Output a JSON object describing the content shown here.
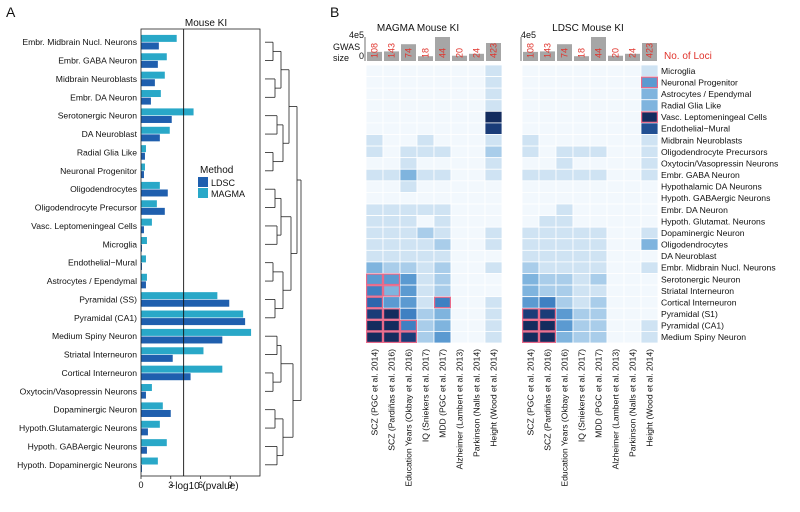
{
  "panel_a": {
    "label": "A",
    "title": "Mouse KI",
    "legend_title": "Method",
    "legend_entries": [
      "LDSC",
      "MAGMA"
    ],
    "colors": {
      "LDSC": "#1f5fae",
      "MAGMA": "#29a8c8"
    },
    "xlabel": "−log10 (pvalue)",
    "xticks": [
      "0",
      "3",
      "6",
      "9"
    ]
  },
  "panel_b": {
    "label": "B",
    "magma_title": "MAGMA Mouse KI",
    "ldsc_title": "LDSC Mouse KI",
    "gwas_label_top": "GWAS",
    "gwas_label_bottom": "size",
    "gwas_axis_top": "4e5",
    "gwas_axis_bottom": "0",
    "loci_label": "No. of Loci",
    "loci_color": "#e0332b",
    "bar_color": "#a6a6a6",
    "highlight_color": "#e86a8a"
  },
  "chart_data": [
    {
      "type": "bar",
      "title": "Mouse KI",
      "xlabel": "−log10 (pvalue)",
      "xlim": [
        0,
        12
      ],
      "threshold": 4.3,
      "categories": [
        "Embr. Midbrain Nucl. Neurons",
        "Embr. GABA Neuron",
        "Midbrain Neuroblasts",
        "Embr. DA Neuron",
        "Serotonergic Neuron",
        "DA Neuroblast",
        "Radial Glia Like",
        "Neuronal Progenitor",
        "Oligodendrocytes",
        "Oligodendrocyte Precursor",
        "Vasc. Leptomeningeal Cells",
        "Microglia",
        "Endothelial−Mural",
        "Astrocytes / Ependymal",
        "Pyramidal (SS)",
        "Pyramidal (CA1)",
        "Medium Spiny Neuron",
        "Striatal Interneuron",
        "Cortical Interneuron",
        "Oxytocin/Vasopressin Neurons",
        "Dopaminergic Neuron",
        "Hypoth.Glutamatergic Neurons",
        "Hypoth. GABAergic Neurons",
        "Hypoth. Dopaminergic Neurons"
      ],
      "series": [
        {
          "name": "MAGMA",
          "values": [
            3.6,
            2.6,
            2.4,
            2.0,
            5.3,
            2.9,
            0.5,
            0.4,
            1.9,
            1.6,
            1.1,
            0.6,
            0.5,
            0.6,
            7.7,
            10.3,
            11.1,
            6.3,
            8.2,
            1.1,
            2.2,
            1.9,
            2.6,
            1.7
          ]
        },
        {
          "name": "LDSC",
          "values": [
            1.8,
            1.7,
            1.4,
            1.0,
            3.1,
            1.9,
            0.4,
            0.3,
            2.7,
            2.4,
            0.3,
            0.1,
            0.1,
            0.5,
            8.9,
            10.5,
            8.2,
            3.2,
            5.0,
            0.5,
            3.0,
            0.7,
            0.6,
            0.1
          ]
        }
      ]
    },
    {
      "type": "heatmap",
      "rows": [
        "Microglia",
        "Neuronal Progenitor",
        "Astrocytes / Ependymal",
        "Radial Glia Like",
        "Vasc. Leptomeningeal Cells",
        "Endothelial−Mural",
        "Midbrain Neuroblasts",
        "Oligodendrocyte Precursors",
        "Oxytocin/Vasopressin Neurons",
        "Embr. GABA Neuron",
        "Hypothalamic DA Neurons",
        "Hypoth. GABAergic Neurons",
        "Embr. DA Neuron",
        "Hypoth. Glutamat. Neurons",
        "Dopaminergic Neuron",
        "Oligodendrocytes",
        "DA Neuroblast",
        "Embr. Midbrain Nucl. Neurons",
        "Serotonergic Neuron",
        "Striatal Interneuron",
        "Cortical Interneuron",
        "Pyramidal (S1)",
        "Pyramidal (CA1)",
        "Medium Spiny Neuron"
      ],
      "columns": [
        "SCZ (PGC et al. 2014)",
        "SCZ (Pardiñas et al. 2016)",
        "Education Years (Okbay et al. 2016)",
        "IQ (Sniekers et al. 2017)",
        "MDD (PGC et al. 2017)",
        "Alzheimer (Lambert et al. 2013)",
        "Parkinson (Nalls et al. 2014)",
        "Height (Wood et al. 2014)"
      ],
      "loci": [
        "108",
        "143",
        "74",
        "18",
        "44",
        "20",
        "24",
        "423"
      ],
      "gwas_size": [
        0.38,
        0.4,
        0.7,
        0.2,
        1.0,
        0.22,
        0.3,
        0.75
      ],
      "magma": [
        [
          0,
          0,
          0,
          0,
          0,
          0,
          0,
          1
        ],
        [
          0,
          0,
          0,
          0,
          0,
          0,
          0,
          1
        ],
        [
          0,
          0,
          0,
          0,
          0,
          0,
          0,
          1
        ],
        [
          0,
          0,
          0,
          0,
          0,
          0,
          0,
          1
        ],
        [
          0,
          0,
          0,
          0,
          0,
          0,
          0,
          9
        ],
        [
          0,
          0,
          0,
          0,
          0,
          0,
          0,
          8
        ],
        [
          1,
          0,
          0,
          1,
          0,
          0,
          0,
          1
        ],
        [
          1,
          0,
          1,
          1,
          1,
          0,
          0,
          2
        ],
        [
          0,
          0,
          1,
          0,
          0,
          0,
          0,
          1
        ],
        [
          1,
          1,
          3,
          1,
          1,
          0,
          0,
          1
        ],
        [
          0,
          0,
          1,
          0,
          0,
          0,
          0,
          0
        ],
        [
          0,
          0,
          0,
          0,
          0,
          0,
          0,
          0
        ],
        [
          1,
          1,
          1,
          1,
          1,
          0,
          0,
          0
        ],
        [
          1,
          1,
          1,
          0,
          1,
          0,
          0,
          0
        ],
        [
          1,
          1,
          1,
          2,
          1,
          0,
          0,
          1
        ],
        [
          1,
          1,
          1,
          1,
          2,
          0,
          0,
          1
        ],
        [
          1,
          1,
          1,
          1,
          1,
          0,
          0,
          0
        ],
        [
          3,
          2,
          2,
          1,
          2,
          0,
          0,
          1
        ],
        [
          4,
          4,
          4,
          1,
          2,
          0,
          0,
          0
        ],
        [
          5,
          3,
          4,
          1,
          2,
          0,
          0,
          0
        ],
        [
          6,
          4,
          4,
          1,
          5,
          0,
          0,
          1
        ],
        [
          8,
          9,
          5,
          2,
          3,
          0,
          0,
          1
        ],
        [
          9,
          9,
          5,
          2,
          3,
          0,
          0,
          1
        ],
        [
          9,
          9,
          8,
          2,
          4,
          0,
          0,
          1
        ]
      ],
      "ldsc": [
        [
          0,
          0,
          0,
          0,
          0,
          0,
          0,
          1
        ],
        [
          0,
          0,
          0,
          0,
          0,
          0,
          0,
          4
        ],
        [
          0,
          0,
          0,
          0,
          0,
          0,
          0,
          3
        ],
        [
          0,
          0,
          0,
          0,
          0,
          0,
          0,
          3
        ],
        [
          0,
          0,
          0,
          0,
          0,
          0,
          0,
          9
        ],
        [
          0,
          0,
          0,
          0,
          0,
          0,
          0,
          7
        ],
        [
          1,
          0,
          0,
          0,
          0,
          0,
          0,
          1
        ],
        [
          1,
          0,
          1,
          1,
          1,
          0,
          0,
          1
        ],
        [
          0,
          0,
          1,
          0,
          0,
          0,
          0,
          1
        ],
        [
          1,
          1,
          1,
          1,
          1,
          0,
          0,
          1
        ],
        [
          0,
          0,
          0,
          0,
          0,
          0,
          0,
          0
        ],
        [
          0,
          0,
          0,
          0,
          0,
          0,
          0,
          0
        ],
        [
          0,
          0,
          1,
          0,
          0,
          0,
          0,
          0
        ],
        [
          0,
          1,
          1,
          0,
          0,
          0,
          0,
          0
        ],
        [
          1,
          1,
          1,
          1,
          1,
          0,
          0,
          1
        ],
        [
          1,
          1,
          1,
          1,
          1,
          0,
          0,
          3
        ],
        [
          1,
          1,
          1,
          1,
          1,
          0,
          0,
          0
        ],
        [
          2,
          1,
          1,
          1,
          1,
          0,
          0,
          1
        ],
        [
          3,
          2,
          2,
          1,
          2,
          0,
          0,
          0
        ],
        [
          3,
          2,
          2,
          1,
          1,
          0,
          0,
          0
        ],
        [
          4,
          5,
          2,
          1,
          2,
          0,
          0,
          0
        ],
        [
          8,
          8,
          4,
          2,
          2,
          0,
          0,
          0
        ],
        [
          9,
          9,
          4,
          2,
          2,
          0,
          0,
          1
        ],
        [
          9,
          9,
          3,
          2,
          2,
          0,
          0,
          1
        ]
      ],
      "highlight_magma": [
        [
          18,
          0
        ],
        [
          18,
          1
        ],
        [
          19,
          0
        ],
        [
          19,
          1
        ],
        [
          20,
          0
        ],
        [
          21,
          0
        ],
        [
          21,
          1
        ],
        [
          22,
          0
        ],
        [
          22,
          1
        ],
        [
          22,
          2
        ],
        [
          23,
          0
        ],
        [
          23,
          1
        ],
        [
          23,
          2
        ],
        [
          20,
          4
        ]
      ],
      "highlight_ldsc": [
        [
          1,
          7
        ],
        [
          4,
          7
        ],
        [
          21,
          0
        ],
        [
          21,
          1
        ],
        [
          22,
          0
        ],
        [
          22,
          1
        ],
        [
          23,
          0
        ],
        [
          23,
          1
        ]
      ]
    }
  ]
}
